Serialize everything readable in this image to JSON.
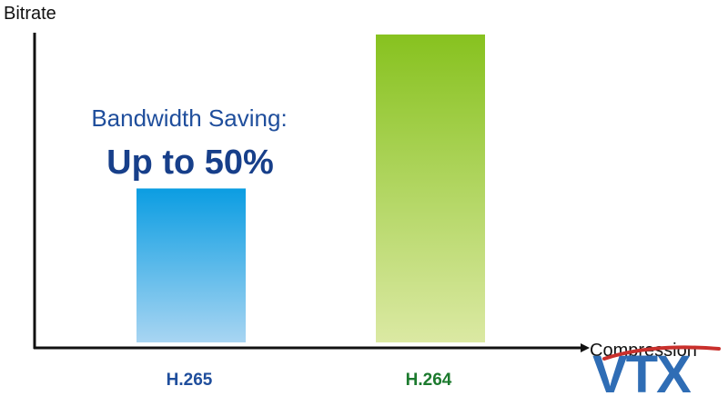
{
  "chart_data": {
    "type": "bar",
    "title": "",
    "xlabel": "Compression",
    "ylabel": "Bitrate",
    "categories": [
      "H.265",
      "H.264"
    ],
    "values": [
      50,
      100
    ],
    "ylim": [
      0,
      100
    ],
    "grid": false,
    "legend": "none",
    "annotations": [
      "Bandwidth Saving:",
      "Up to 50%"
    ],
    "colors": {
      "H.265_top": "#0b9de2",
      "H.265_bottom": "#a8d5f2",
      "H.264_top": "#87c21f",
      "H.264_bottom": "#dbe9a3",
      "label_H.265": "#1f4e9c",
      "label_H.264": "#1c7a2e"
    }
  },
  "logo": {
    "text": "VTX",
    "color": "#2f6db5",
    "accent": "#c9302c"
  }
}
